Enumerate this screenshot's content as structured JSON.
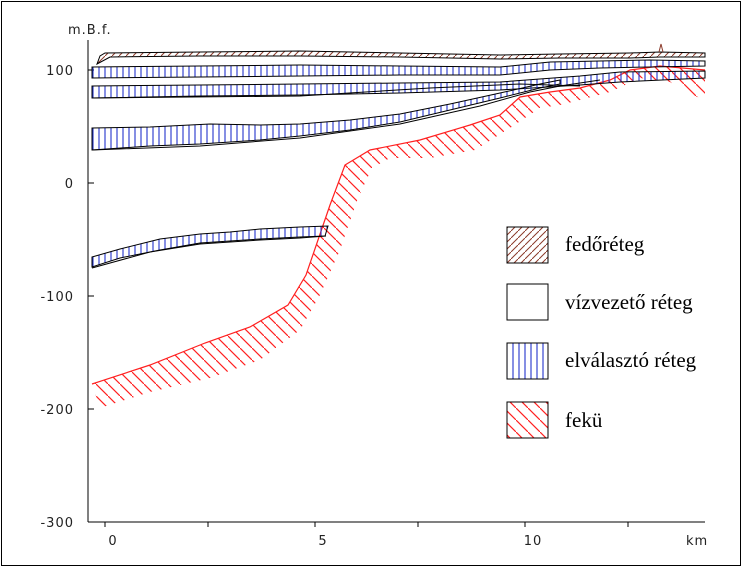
{
  "y_axis": {
    "unit": "m.B.f.",
    "ticks": [
      {
        "label": "100",
        "value": 100
      },
      {
        "label": "0",
        "value": 0
      },
      {
        "label": "-100",
        "value": -100
      },
      {
        "label": "-200",
        "value": -200
      },
      {
        "label": "-300",
        "value": -300
      }
    ]
  },
  "x_axis": {
    "unit": "km",
    "ticks": [
      {
        "label": "0",
        "value": 0
      },
      {
        "label": "5",
        "value": 5
      },
      {
        "label": "10",
        "value": 10
      }
    ]
  },
  "legend": [
    {
      "key": "cover",
      "label": "fedőréteg",
      "pattern": "diag-up-brown"
    },
    {
      "key": "aquifer",
      "label": "vízvezető réteg",
      "pattern": "none"
    },
    {
      "key": "aquitard",
      "label": "elválasztó réteg",
      "pattern": "vertical-blue"
    },
    {
      "key": "bedrock",
      "label": "fekü",
      "pattern": "diag-down-red"
    }
  ],
  "colors": {
    "cover": "#8b3a2a",
    "aquitard": "#2233cc",
    "bedrock": "#ff2020",
    "line": "#000000"
  }
}
